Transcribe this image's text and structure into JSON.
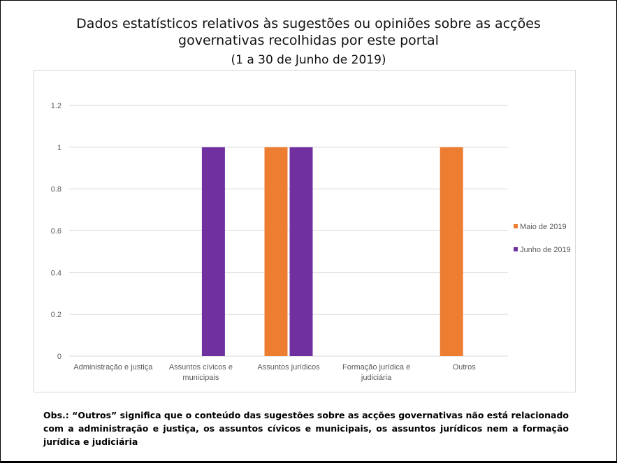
{
  "header": {
    "title_line1": "Dados estatísticos relativos às sugestões ou opiniões sobre as acções",
    "title_line2": "governativas recolhidas por este portal",
    "subtitle": "(1 a 30 de Junho de 2019)"
  },
  "chart_data": {
    "type": "bar",
    "categories": [
      [
        "Administração e justiça"
      ],
      [
        "Assuntos cívicos e",
        "municipais"
      ],
      [
        "Assuntos jurídicos"
      ],
      [
        "Formação jurídica e",
        "judiciária"
      ],
      [
        "Outros"
      ]
    ],
    "series": [
      {
        "name": "Maio de 2019",
        "color": "#ED7D31",
        "values": [
          0,
          0,
          1,
          0,
          1
        ]
      },
      {
        "name": "Junho de 2019",
        "color": "#7030A0",
        "values": [
          0,
          1,
          1,
          0,
          0
        ]
      }
    ],
    "y_ticks": [
      "0",
      "0.2",
      "0.4",
      "0.6",
      "0.8",
      "1",
      "1.2"
    ],
    "ylim": [
      0,
      1.2
    ],
    "grid": true,
    "legend_position": "right",
    "title": "Dados estatísticos relativos às sugestões ou opiniões sobre as acções governativas recolhidas por este portal",
    "xlabel": "",
    "ylabel": ""
  },
  "footer": {
    "note": "Obs.: “Outros” significa que o conteúdo das sugestões sobre as acções governativas não está relacionado com a administração e justiça, os assuntos cívicos e municipais, os assuntos jurídicos nem a formação jurídica e judiciária"
  },
  "colors": {
    "grid": "#d9d9d9",
    "axis_text": "#595959"
  }
}
